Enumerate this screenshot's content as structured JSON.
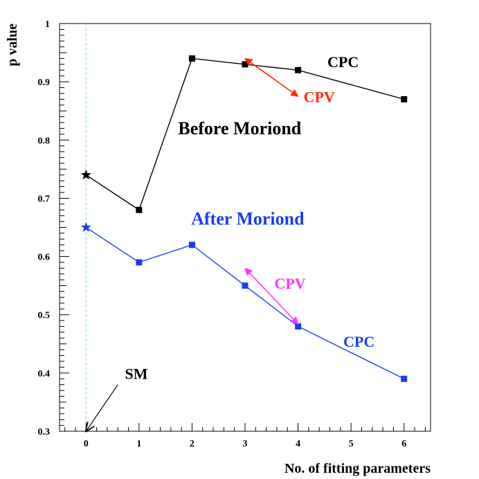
{
  "chart_data": {
    "type": "line",
    "xlabel": "No. of fitting parameters",
    "ylabel": "p value",
    "xlim": [
      -0.5,
      6.5
    ],
    "ylim": [
      0.3,
      1.0
    ],
    "xticks": [
      0,
      1,
      2,
      3,
      4,
      5,
      6
    ],
    "yticks": [
      0.3,
      0.4,
      0.5,
      0.6,
      0.7,
      0.8,
      0.9,
      1.0
    ],
    "xtick_labels": [
      "0",
      "1",
      "2",
      "3",
      "4",
      "5",
      "6"
    ],
    "ytick_labels": [
      "0.3",
      "0.4",
      "0.5",
      "0.6",
      "0.7",
      "0.8",
      "0.9",
      "1"
    ],
    "grid": false,
    "sm_line_x": 0,
    "series": [
      {
        "group": "before",
        "color": "#000000",
        "x": [
          0,
          1,
          2,
          3,
          4,
          6
        ],
        "y": [
          0.74,
          0.68,
          0.94,
          0.93,
          0.92,
          0.87
        ],
        "first_marker": "star",
        "marker": "square"
      },
      {
        "group": "after",
        "color": "#1a3ff0",
        "x": [
          0,
          1,
          2,
          3,
          4,
          6
        ],
        "y": [
          0.65,
          0.59,
          0.62,
          0.55,
          0.48,
          0.39
        ],
        "first_marker": "star",
        "marker": "square"
      }
    ],
    "arrows": [
      {
        "group": "before-cpv",
        "color": "#ff2a00",
        "from": [
          3,
          0.94
        ],
        "to": [
          4,
          0.875
        ]
      },
      {
        "group": "after-cpv",
        "color": "#ff33ff",
        "from": [
          3,
          0.58
        ],
        "to": [
          4,
          0.484
        ]
      },
      {
        "group": "sm",
        "color": "#000000",
        "from": [
          0.6,
          0.38
        ],
        "to": [
          0,
          0.3
        ]
      }
    ],
    "annotations": [
      {
        "id": "before-moriond",
        "text": "Before Moriond",
        "color": "#000000",
        "size": 26,
        "at": [
          2.9,
          0.81
        ]
      },
      {
        "id": "after-moriond",
        "text": "After Moriond",
        "color": "#1a3ff0",
        "size": 26,
        "at": [
          3.05,
          0.655
        ]
      },
      {
        "id": "cpc-before",
        "text": "CPC",
        "color": "#000000",
        "size": 22,
        "at": [
          4.85,
          0.925
        ]
      },
      {
        "id": "cpv-before",
        "text": "CPV",
        "color": "#ff2a00",
        "size": 22,
        "at": [
          4.4,
          0.865
        ]
      },
      {
        "id": "cpv-after",
        "text": "CPV",
        "color": "#ff33ff",
        "size": 22,
        "at": [
          3.85,
          0.545
        ]
      },
      {
        "id": "cpc-after",
        "text": "CPC",
        "color": "#1a3ff0",
        "size": 22,
        "at": [
          5.15,
          0.445
        ]
      },
      {
        "id": "sm-label",
        "text": "SM",
        "color": "#000000",
        "size": 22,
        "at": [
          0.95,
          0.39
        ]
      }
    ]
  }
}
